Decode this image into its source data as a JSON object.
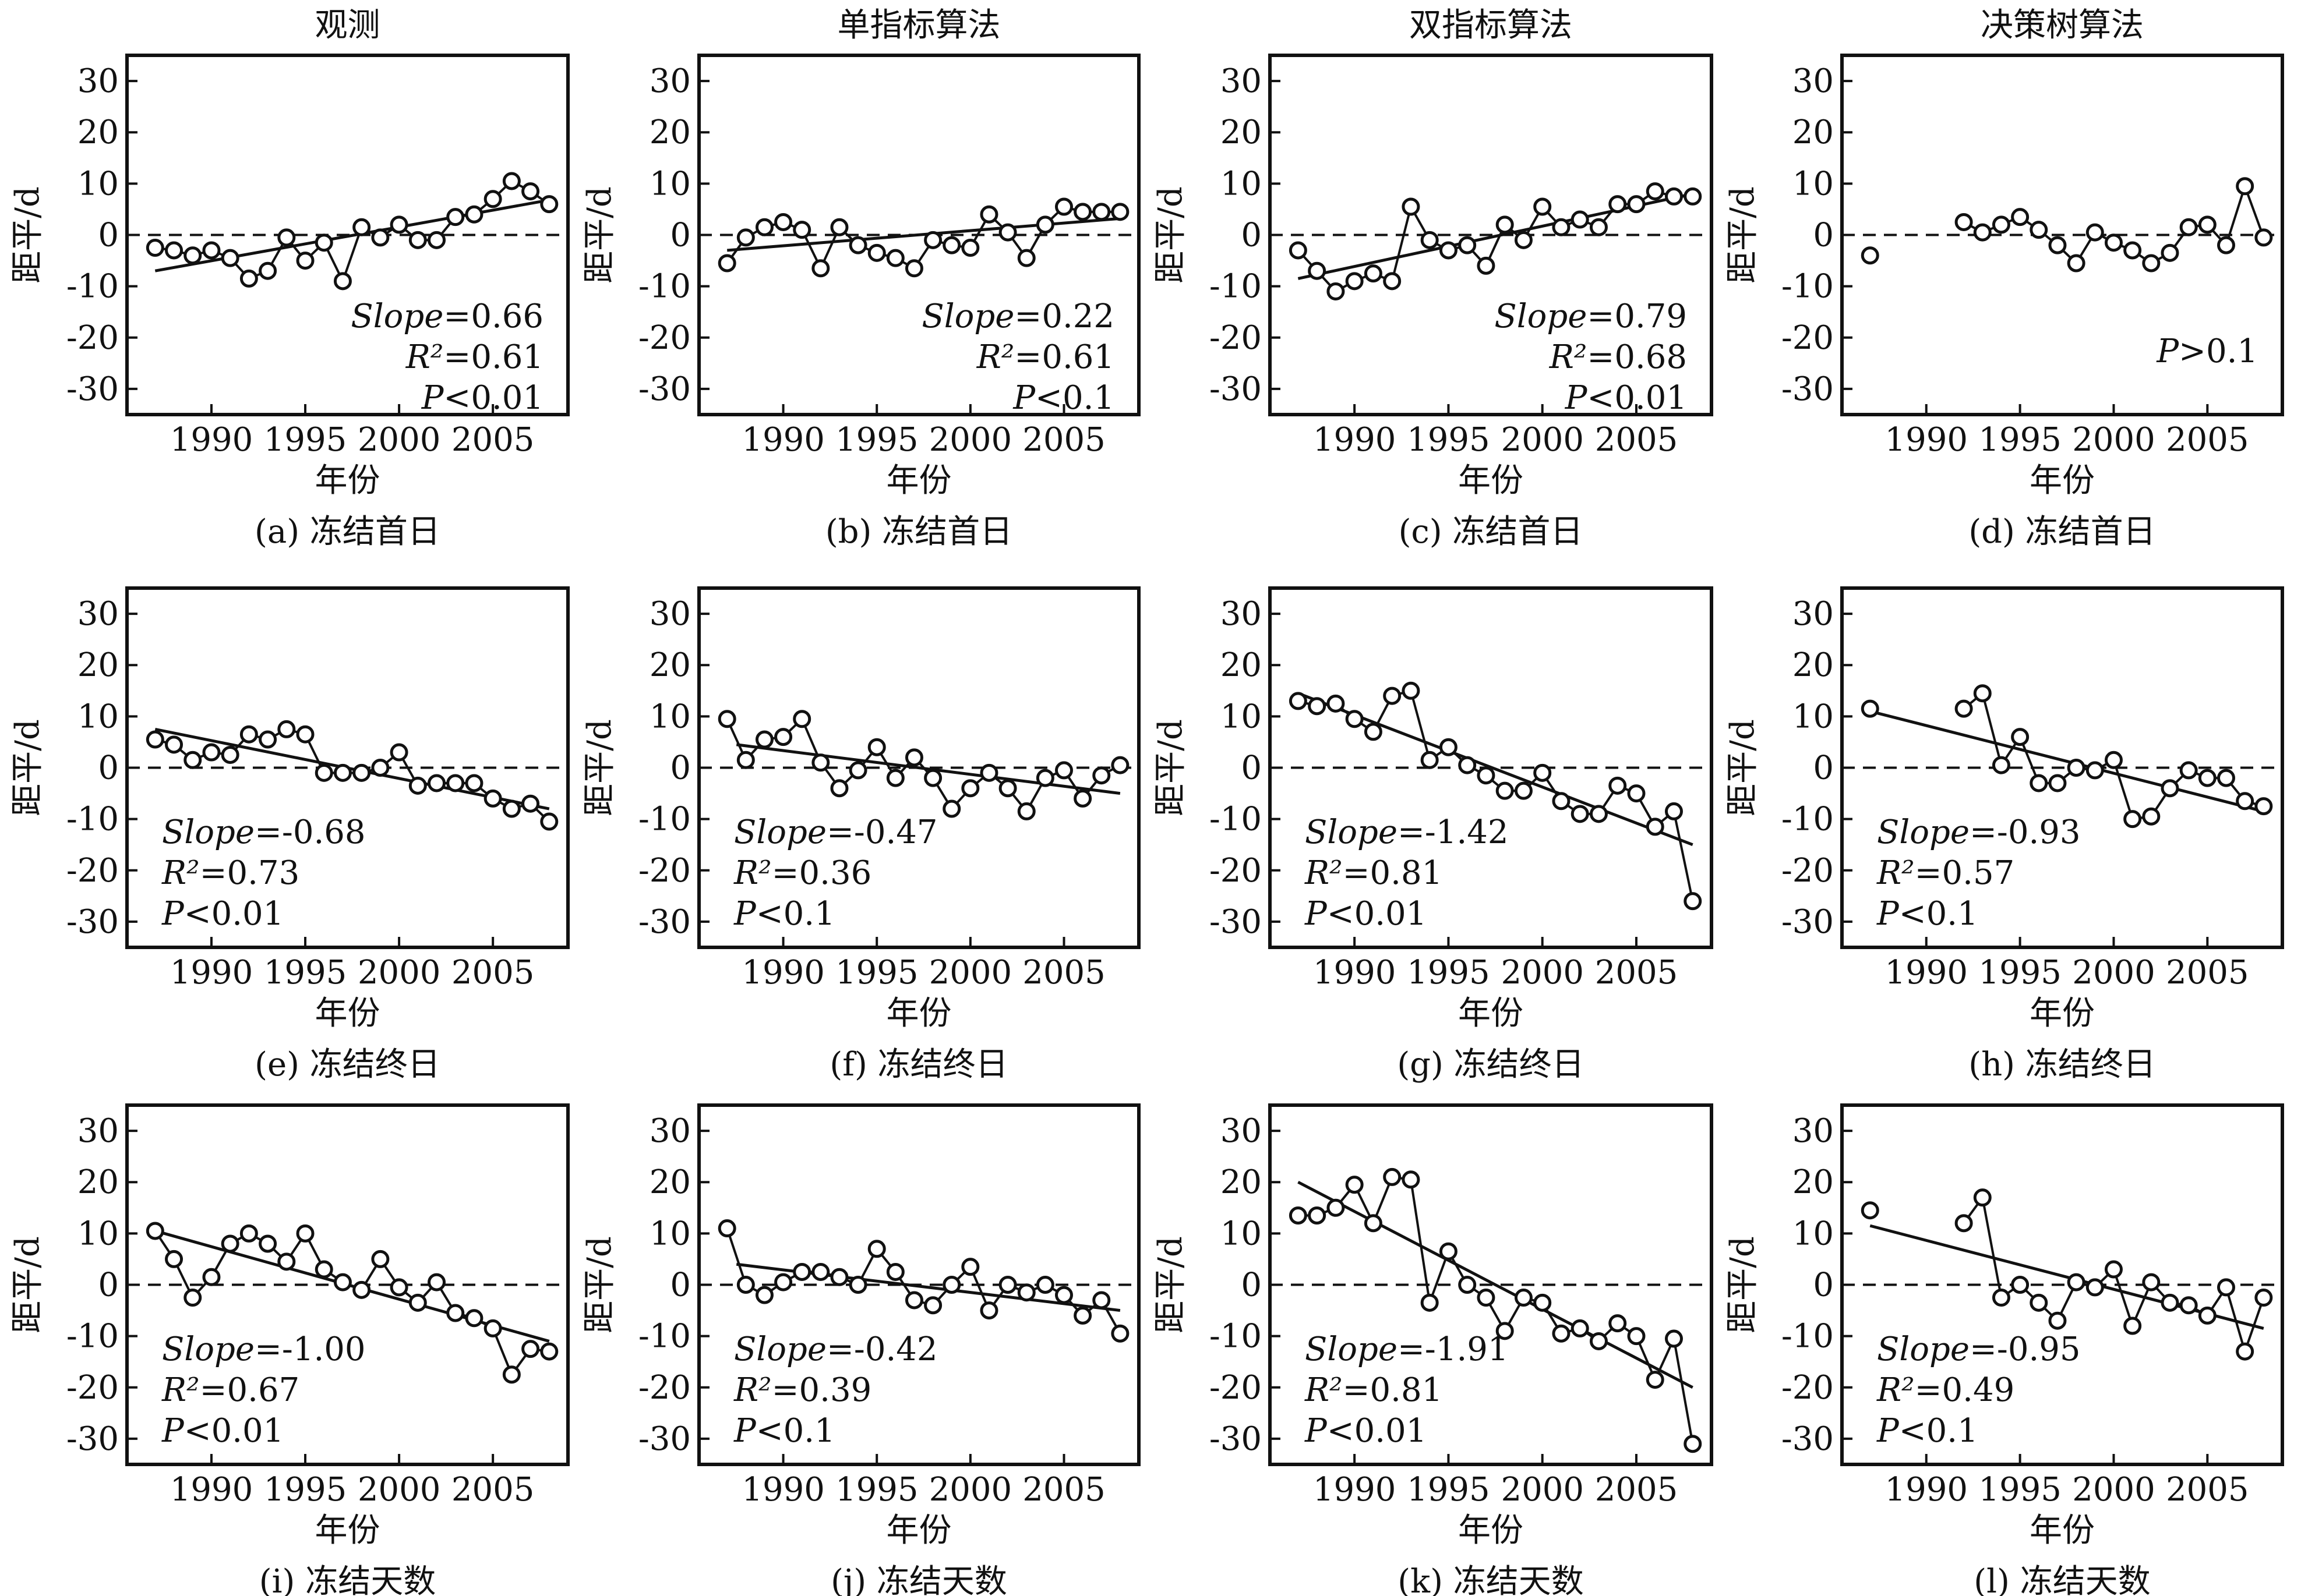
{
  "columns": [
    "观测",
    "单指标算法",
    "双指标算法",
    "决策树算法"
  ],
  "xlabel": "年份",
  "ylabel": "距平/d",
  "x_ticks": [
    "1990",
    "1995",
    "2000",
    "2005"
  ],
  "y_ticks": [
    "30",
    "20",
    "10",
    "0",
    "-10",
    "-20",
    "-30"
  ],
  "chart_data": [
    {
      "type": "scatter",
      "caption": "(a) 冻结首日",
      "stats": {
        "slope_label": "Slope",
        "slope": "=0.66",
        "r2_label": "R²",
        "r2": "=0.61",
        "p_label": "P",
        "p": "<0.01"
      },
      "x": [
        1987,
        1988,
        1989,
        1990,
        1991,
        1992,
        1993,
        1994,
        1995,
        1996,
        1997,
        1998,
        1999,
        2000,
        2001,
        2002,
        2003,
        2004,
        2005,
        2006,
        2007,
        2008
      ],
      "y": [
        -2.5,
        -3,
        -4,
        -3,
        -4.5,
        -8.5,
        -7,
        -0.5,
        -5,
        -1.5,
        -9,
        1.5,
        -0.5,
        2,
        -1,
        -1,
        3.5,
        4,
        7,
        10.5,
        8.5,
        6
      ],
      "trend": {
        "x": [
          1987,
          2008
        ],
        "y": [
          -7,
          6.8
        ]
      },
      "xlim": [
        1985.5,
        2009
      ],
      "ylim": [
        -35,
        35
      ]
    },
    {
      "type": "scatter",
      "caption": "(b) 冻结首日",
      "stats": {
        "slope_label": "Slope",
        "slope": "=0.22",
        "r2_label": "R²",
        "r2": "=0.61",
        "p_label": "P",
        "p": "<0.1"
      },
      "x": [
        1987,
        1988,
        1989,
        1990,
        1991,
        1992,
        1993,
        1994,
        1995,
        1996,
        1997,
        1998,
        1999,
        2000,
        2001,
        2002,
        2003,
        2004,
        2005,
        2006,
        2007,
        2008
      ],
      "y": [
        -5.5,
        -0.5,
        1.5,
        2.5,
        1,
        -6.5,
        1.5,
        -2,
        -3.5,
        -4.5,
        -6.5,
        -1,
        -2,
        -2.5,
        4,
        0.5,
        -4.5,
        2,
        5.5,
        4.5,
        4.5,
        4.5
      ],
      "trend": {
        "x": [
          1987,
          2008
        ],
        "y": [
          -3,
          3.2
        ]
      },
      "xlim": [
        1985.5,
        2009
      ],
      "ylim": [
        -35,
        35
      ]
    },
    {
      "type": "scatter",
      "caption": "(c) 冻结首日",
      "stats": {
        "slope_label": "Slope",
        "slope": "=0.79",
        "r2_label": "R²",
        "r2": "=0.68",
        "p_label": "P",
        "p": "<0.01"
      },
      "x": [
        1987,
        1988,
        1989,
        1990,
        1991,
        1992,
        1993,
        1994,
        1995,
        1996,
        1997,
        1998,
        1999,
        2000,
        2001,
        2002,
        2003,
        2004,
        2005,
        2006,
        2007,
        2008
      ],
      "y": [
        -3,
        -7,
        -11,
        -9,
        -7.5,
        -9,
        5.5,
        -1,
        -3,
        -2,
        -6,
        2,
        -1,
        5.5,
        1.5,
        3,
        1.5,
        6,
        6,
        8.5,
        7.5,
        7.5
      ],
      "trend": {
        "x": [
          1987,
          2008
        ],
        "y": [
          -8.5,
          8
        ]
      },
      "xlim": [
        1985.5,
        2009
      ],
      "ylim": [
        -35,
        35
      ]
    },
    {
      "type": "scatter",
      "caption": "(d) 冻结首日",
      "stats": {
        "slope_label": "",
        "slope": "",
        "r2_label": "",
        "r2": "",
        "p_label": "P",
        "p": ">0.1"
      },
      "x": [
        1987,
        1992,
        1993,
        1994,
        1995,
        1996,
        1997,
        1998,
        1999,
        2000,
        2001,
        2002,
        2003,
        2004,
        2005,
        2006,
        2007,
        2008
      ],
      "y": [
        -4,
        2.5,
        0.5,
        2,
        3.5,
        1,
        -2,
        -5.5,
        0.5,
        -1.5,
        -3,
        -5.5,
        -3.5,
        1.5,
        2,
        -2,
        9.5,
        -0.5
      ],
      "segments": [
        [
          1,
          17
        ]
      ],
      "trend": null,
      "xlim": [
        1985.5,
        2009
      ],
      "ylim": [
        -35,
        35
      ]
    },
    {
      "type": "scatter",
      "caption": "(e) 冻结终日",
      "stats": {
        "slope_label": "Slope",
        "slope": "=-0.68",
        "r2_label": "R²",
        "r2": "=0.73",
        "p_label": "P",
        "p": "<0.01"
      },
      "x": [
        1987,
        1988,
        1989,
        1990,
        1991,
        1992,
        1993,
        1994,
        1995,
        1996,
        1997,
        1998,
        1999,
        2000,
        2001,
        2002,
        2003,
        2004,
        2005,
        2006,
        2007,
        2008
      ],
      "y": [
        5.5,
        4.5,
        1.5,
        3,
        2.5,
        6.5,
        5.5,
        7.5,
        6.5,
        -1,
        -1,
        -1,
        0,
        3,
        -3.5,
        -3,
        -3,
        -3,
        -6,
        -8,
        -7,
        -10.5
      ],
      "trend": {
        "x": [
          1987,
          2008
        ],
        "y": [
          7.5,
          -8
        ]
      },
      "xlim": [
        1985.5,
        2009
      ],
      "ylim": [
        -35,
        35
      ]
    },
    {
      "type": "scatter",
      "caption": "(f) 冻结终日",
      "stats": {
        "slope_label": "Slope",
        "slope": "=-0.47",
        "r2_label": "R²",
        "r2": "=0.36",
        "p_label": "P",
        "p": "<0.1"
      },
      "x": [
        1987,
        1988,
        1989,
        1990,
        1991,
        1992,
        1993,
        1994,
        1995,
        1996,
        1997,
        1998,
        1999,
        2000,
        2001,
        2002,
        2003,
        2004,
        2005,
        2006,
        2007,
        2008
      ],
      "y": [
        9.5,
        1.5,
        5.5,
        6,
        9.5,
        1,
        -4,
        -0.5,
        4,
        -2,
        2,
        -2,
        -8,
        -4,
        -1,
        -4,
        -8.5,
        -2,
        -0.5,
        -6,
        -1.5,
        0.5
      ],
      "trend": {
        "x": [
          1987.5,
          2008
        ],
        "y": [
          4.5,
          -5
        ]
      },
      "xlim": [
        1985.5,
        2009
      ],
      "ylim": [
        -35,
        35
      ]
    },
    {
      "type": "scatter",
      "caption": "(g) 冻结终日",
      "stats": {
        "slope_label": "Slope",
        "slope": "=-1.42",
        "r2_label": "R²",
        "r2": "=0.81",
        "p_label": "P",
        "p": "<0.01"
      },
      "x": [
        1987,
        1988,
        1989,
        1990,
        1991,
        1992,
        1993,
        1994,
        1995,
        1996,
        1997,
        1998,
        1999,
        2000,
        2001,
        2002,
        2003,
        2004,
        2005,
        2006,
        2007,
        2008
      ],
      "y": [
        13,
        12,
        12.5,
        9.5,
        7,
        14,
        15,
        1.5,
        4,
        0.5,
        -1.5,
        -4.5,
        -4.5,
        -1,
        -6.5,
        -9,
        -9,
        -3.5,
        -5,
        -11.5,
        -8.5,
        -26
      ],
      "trend": {
        "x": [
          1987,
          2008
        ],
        "y": [
          14.5,
          -15
        ]
      },
      "xlim": [
        1985.5,
        2009
      ],
      "ylim": [
        -35,
        35
      ]
    },
    {
      "type": "scatter",
      "caption": "(h) 冻结终日",
      "stats": {
        "slope_label": "Slope",
        "slope": "=-0.93",
        "r2_label": "R²",
        "r2": "=0.57",
        "p_label": "P",
        "p": "<0.1"
      },
      "x": [
        1987,
        1992,
        1993,
        1994,
        1995,
        1996,
        1997,
        1998,
        1999,
        2000,
        2001,
        2002,
        2003,
        2004,
        2005,
        2006,
        2007,
        2008
      ],
      "y": [
        11.5,
        11.5,
        14.5,
        0.5,
        6,
        -3,
        -3,
        0,
        -0.5,
        1.5,
        -10,
        -9.5,
        -4,
        -0.5,
        -2,
        -2,
        -6.5,
        -7.5
      ],
      "segments": [
        [
          1,
          17
        ]
      ],
      "trend": {
        "x": [
          1987,
          2008
        ],
        "y": [
          11,
          -8.5
        ]
      },
      "xlim": [
        1985.5,
        2009
      ],
      "ylim": [
        -35,
        35
      ]
    },
    {
      "type": "scatter",
      "caption": "(i) 冻结天数",
      "stats": {
        "slope_label": "Slope",
        "slope": "=-1.00",
        "r2_label": "R²",
        "r2": "=0.67",
        "p_label": "P",
        "p": "<0.01"
      },
      "x": [
        1987,
        1988,
        1989,
        1990,
        1991,
        1992,
        1993,
        1994,
        1995,
        1996,
        1997,
        1998,
        1999,
        2000,
        2001,
        2002,
        2003,
        2004,
        2005,
        2006,
        2007,
        2008
      ],
      "y": [
        10.5,
        5,
        -2.5,
        1.5,
        8,
        10,
        8,
        4.5,
        10,
        3,
        0.5,
        -1,
        5,
        -0.5,
        -3.5,
        0.5,
        -5.5,
        -6.5,
        -8.5,
        -17.5,
        -12.5,
        -13
      ],
      "trend": {
        "x": [
          1987,
          2008
        ],
        "y": [
          10.5,
          -11
        ]
      },
      "xlim": [
        1985.5,
        2009
      ],
      "ylim": [
        -35,
        35
      ]
    },
    {
      "type": "scatter",
      "caption": "(j) 冻结天数",
      "stats": {
        "slope_label": "Slope",
        "slope": "=-0.42",
        "r2_label": "R²",
        "r2": "=0.39",
        "p_label": "P",
        "p": "<0.1"
      },
      "x": [
        1987,
        1988,
        1989,
        1990,
        1991,
        1992,
        1993,
        1994,
        1995,
        1996,
        1997,
        1998,
        1999,
        2000,
        2001,
        2002,
        2003,
        2004,
        2005,
        2006,
        2007,
        2008
      ],
      "y": [
        11,
        0,
        -2,
        0.5,
        2.5,
        2.5,
        1.5,
        0,
        7,
        2.5,
        -3,
        -4,
        0,
        3.5,
        -5,
        0,
        -1.5,
        0,
        -2,
        -6,
        -3,
        -9.5
      ],
      "trend": {
        "x": [
          1987.5,
          2008
        ],
        "y": [
          4,
          -5
        ]
      },
      "xlim": [
        1985.5,
        2009
      ],
      "ylim": [
        -35,
        35
      ]
    },
    {
      "type": "scatter",
      "caption": "(k) 冻结天数",
      "stats": {
        "slope_label": "Slope",
        "slope": "=-1.91",
        "r2_label": "R²",
        "r2": "=0.81",
        "p_label": "P",
        "p": "<0.01"
      },
      "x": [
        1987,
        1988,
        1989,
        1990,
        1991,
        1992,
        1993,
        1994,
        1995,
        1996,
        1997,
        1998,
        1999,
        2000,
        2001,
        2002,
        2003,
        2004,
        2005,
        2006,
        2007,
        2008
      ],
      "y": [
        13.5,
        13.5,
        15,
        19.5,
        12,
        21,
        20.5,
        -3.5,
        6.5,
        0,
        -2.5,
        -9,
        -2.5,
        -3.5,
        -9.5,
        -8.5,
        -11,
        -7.5,
        -10,
        -18.5,
        -10.5,
        -31
      ],
      "trend": {
        "x": [
          1987,
          2008
        ],
        "y": [
          20,
          -20
        ]
      },
      "xlim": [
        1985.5,
        2009
      ],
      "ylim": [
        -35,
        35
      ]
    },
    {
      "type": "scatter",
      "caption": "(l) 冻结天数",
      "stats": {
        "slope_label": "Slope",
        "slope": "=-0.95",
        "r2_label": "R²",
        "r2": "=0.49",
        "p_label": "P",
        "p": "<0.1"
      },
      "x": [
        1987,
        1992,
        1993,
        1994,
        1995,
        1996,
        1997,
        1998,
        1999,
        2000,
        2001,
        2002,
        2003,
        2004,
        2005,
        2006,
        2007,
        2008
      ],
      "y": [
        14.5,
        12,
        17,
        -2.5,
        0,
        -3.5,
        -7,
        0.5,
        -0.5,
        3,
        -8,
        0.5,
        -3.5,
        -4,
        -6,
        -0.5,
        -13,
        -2.5
      ],
      "segments": [
        [
          1,
          17
        ]
      ],
      "trend": {
        "x": [
          1987,
          2008
        ],
        "y": [
          11.5,
          -8.5
        ]
      },
      "xlim": [
        1985.5,
        2009
      ],
      "ylim": [
        -35,
        35
      ]
    }
  ]
}
